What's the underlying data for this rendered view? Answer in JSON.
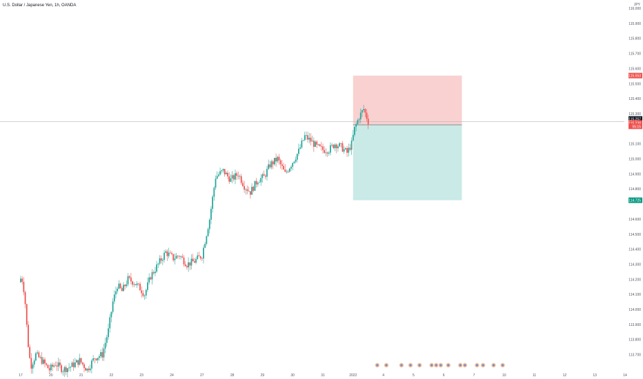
{
  "chart_data": {
    "type": "candlestick",
    "title": "U.S. Dollar / Japanese Yen, 1h, OANDA",
    "currency_label": "JPY",
    "y_range": [
      113.6,
      116.0
    ],
    "y_ticks": [
      116.0,
      115.9,
      115.8,
      115.7,
      115.6,
      115.5,
      115.4,
      115.3,
      115.1,
      115.0,
      114.9,
      114.8,
      114.6,
      114.5,
      114.4,
      114.3,
      114.2,
      114.1,
      114.0,
      113.9,
      113.8,
      113.7
    ],
    "y_tick_labels": [
      "116.000",
      "115.900",
      "115.800",
      "115.700",
      "115.600",
      "115.500",
      "115.400",
      "115.300",
      "115.100",
      "115.000",
      "114.900",
      "114.800",
      "114.600",
      "114.500",
      "114.400",
      "114.300",
      "114.200",
      "114.100",
      "114.000",
      "113.900",
      "113.800",
      "113.700"
    ],
    "x_ticks": [
      {
        "label": "17",
        "x": 0
      },
      {
        "label": "20",
        "x": 1
      },
      {
        "label": "21",
        "x": 2
      },
      {
        "label": "22",
        "x": 3
      },
      {
        "label": "23",
        "x": 4
      },
      {
        "label": "24",
        "x": 5
      },
      {
        "label": "27",
        "x": 6
      },
      {
        "label": "28",
        "x": 7
      },
      {
        "label": "29",
        "x": 8
      },
      {
        "label": "30",
        "x": 9
      },
      {
        "label": "31",
        "x": 10
      },
      {
        "label": "2022",
        "x": 11
      },
      {
        "label": "4",
        "x": 12
      },
      {
        "label": "5",
        "x": 13
      },
      {
        "label": "6",
        "x": 14
      },
      {
        "label": "7",
        "x": 15
      },
      {
        "label": "10",
        "x": 16
      },
      {
        "label": "11",
        "x": 17
      },
      {
        "label": "12",
        "x": 18
      },
      {
        "label": "13",
        "x": 19
      },
      {
        "label": "14",
        "x": 20
      }
    ],
    "x_range": [
      -0.05,
      20.0
    ],
    "price_path": [
      [
        0.0,
        114.18
      ],
      [
        0.08,
        114.22
      ],
      [
        0.18,
        114.1
      ],
      [
        0.28,
        113.8
      ],
      [
        0.38,
        113.62
      ],
      [
        0.55,
        113.7
      ],
      [
        0.75,
        113.66
      ],
      [
        1.0,
        113.6
      ],
      [
        1.2,
        113.64
      ],
      [
        1.45,
        113.6
      ],
      [
        1.7,
        113.62
      ],
      [
        2.0,
        113.66
      ],
      [
        2.25,
        113.6
      ],
      [
        2.5,
        113.68
      ],
      [
        2.75,
        113.7
      ],
      [
        2.95,
        113.86
      ],
      [
        3.1,
        114.05
      ],
      [
        3.25,
        114.16
      ],
      [
        3.4,
        114.12
      ],
      [
        3.6,
        114.2
      ],
      [
        3.8,
        114.18
      ],
      [
        4.0,
        114.14
      ],
      [
        4.15,
        114.1
      ],
      [
        4.35,
        114.22
      ],
      [
        4.6,
        114.3
      ],
      [
        4.85,
        114.38
      ],
      [
        5.1,
        114.34
      ],
      [
        5.3,
        114.36
      ],
      [
        5.55,
        114.3
      ],
      [
        5.8,
        114.32
      ],
      [
        6.05,
        114.36
      ],
      [
        6.3,
        114.6
      ],
      [
        6.5,
        114.88
      ],
      [
        6.75,
        114.92
      ],
      [
        7.0,
        114.86
      ],
      [
        7.25,
        114.9
      ],
      [
        7.45,
        114.82
      ],
      [
        7.65,
        114.78
      ],
      [
        7.9,
        114.86
      ],
      [
        8.1,
        114.88
      ],
      [
        8.3,
        114.96
      ],
      [
        8.55,
        115.0
      ],
      [
        8.8,
        114.9
      ],
      [
        9.05,
        114.98
      ],
      [
        9.25,
        115.05
      ],
      [
        9.45,
        115.15
      ],
      [
        9.65,
        115.12
      ],
      [
        9.85,
        115.08
      ],
      [
        10.05,
        115.06
      ],
      [
        10.25,
        115.06
      ],
      [
        10.45,
        115.1
      ],
      [
        10.65,
        115.08
      ],
      [
        10.85,
        115.04
      ],
      [
        11.0,
        115.1
      ],
      [
        11.1,
        115.2
      ],
      [
        11.25,
        115.28
      ],
      [
        11.4,
        115.33
      ],
      [
        11.55,
        115.25
      ]
    ],
    "position": {
      "type": "short",
      "entry": 115.226,
      "stop": 115.553,
      "target": 114.725,
      "x_start": 11.0,
      "x_end": 14.6
    },
    "last_price": 115.257,
    "price_tags": [
      {
        "label": "115.553",
        "value": 115.553,
        "color": "#ef5350"
      },
      {
        "label": "115.257",
        "value": 115.265,
        "color": "#131722"
      },
      {
        "label": "115.238",
        "value": 115.238,
        "color": "#ef5350"
      },
      {
        "label": "55:15",
        "value": 115.216,
        "color": "#ef5350"
      },
      {
        "label": "114.725",
        "value": 114.725,
        "color": "#089981"
      }
    ],
    "event_icons_x": [
      11.8,
      12.1,
      12.6,
      12.9,
      13.2,
      13.6,
      13.75,
      13.9,
      14.15,
      14.55,
      14.7,
      15.1,
      15.3,
      15.65,
      15.95
    ],
    "colors": {
      "up": "#26a69a",
      "down": "#ef5350",
      "stop_zone": "#f8c9c9",
      "target_zone": "#bfe6e3",
      "axis_text": "#50535e"
    }
  }
}
